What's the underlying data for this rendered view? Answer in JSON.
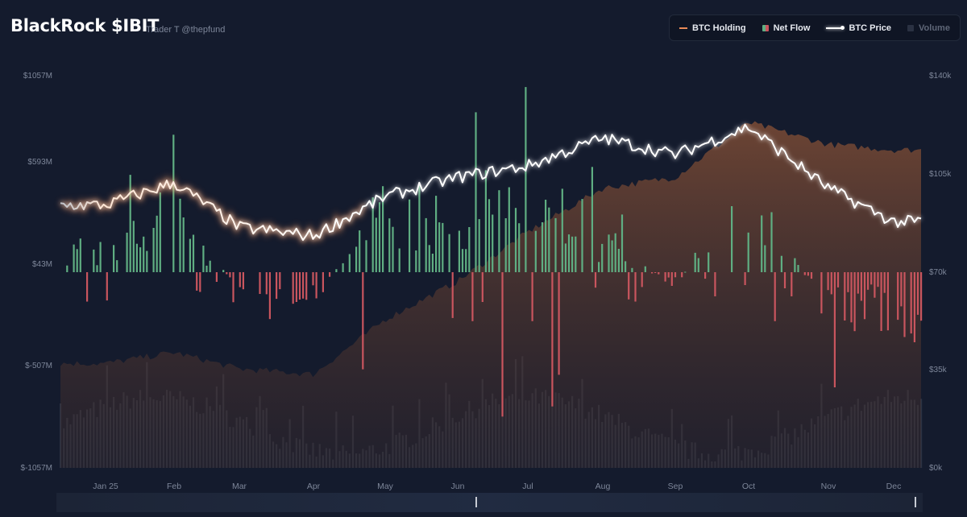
{
  "header": {
    "title": "BlackRock $IBIT",
    "subtitle": "Trader T @thepfund"
  },
  "legend": {
    "items": [
      {
        "label": "BTC Holding",
        "color": "#e98a57"
      },
      {
        "label": "Net Flow",
        "color": "#5fae82"
      },
      {
        "label": "BTC Price",
        "color": "#ffffff"
      },
      {
        "label": "Volume",
        "color": "#5e6677"
      }
    ]
  },
  "axes": {
    "left_ticks": [
      "$1057M",
      "$593M",
      "$43M",
      "$-507M",
      "$-1057M"
    ],
    "right_ticks": [
      "$140k",
      "$105k",
      "$70k",
      "$35k",
      "$0k"
    ],
    "x_ticks": [
      "Jan 25",
      "Feb",
      "Mar",
      "Apr",
      "May",
      "Jun",
      "Jul",
      "Aug",
      "Sep",
      "Oct",
      "Nov",
      "Dec"
    ]
  },
  "colors": {
    "inflow": "#5fae82",
    "outflow": "#c9555e",
    "holding": "#e98a57",
    "price": "#ffffff",
    "volume": "#2e3546"
  },
  "chart_data": {
    "type": "line",
    "left_axis": {
      "label": "Net Flow",
      "ylim": [
        -1057,
        1057
      ],
      "unit": "M USD"
    },
    "right_axis": {
      "label": "BTC Price",
      "ylim": [
        0,
        140000
      ],
      "unit": "USD"
    },
    "x": [
      "Jan 25",
      "Feb",
      "Mar",
      "Apr",
      "May",
      "Jun",
      "Jul",
      "Aug",
      "Sep",
      "Oct",
      "Nov",
      "Dec"
    ],
    "series": [
      {
        "name": "BTC Price",
        "values": [
          94000,
          102000,
          86000,
          83000,
          97000,
          104000,
          108000,
          118000,
          112000,
          122000,
          100000,
          88000
        ]
      },
      {
        "name": "Net Flow",
        "values": [
          150,
          420,
          -120,
          -180,
          520,
          380,
          700,
          250,
          -90,
          600,
          -300,
          -350
        ]
      },
      {
        "name": "BTC Holding",
        "values": [
          580000,
          590000,
          575000,
          570000,
          620000,
          655000,
          700000,
          740000,
          750000,
          800000,
          780000,
          775000
        ]
      }
    ]
  }
}
